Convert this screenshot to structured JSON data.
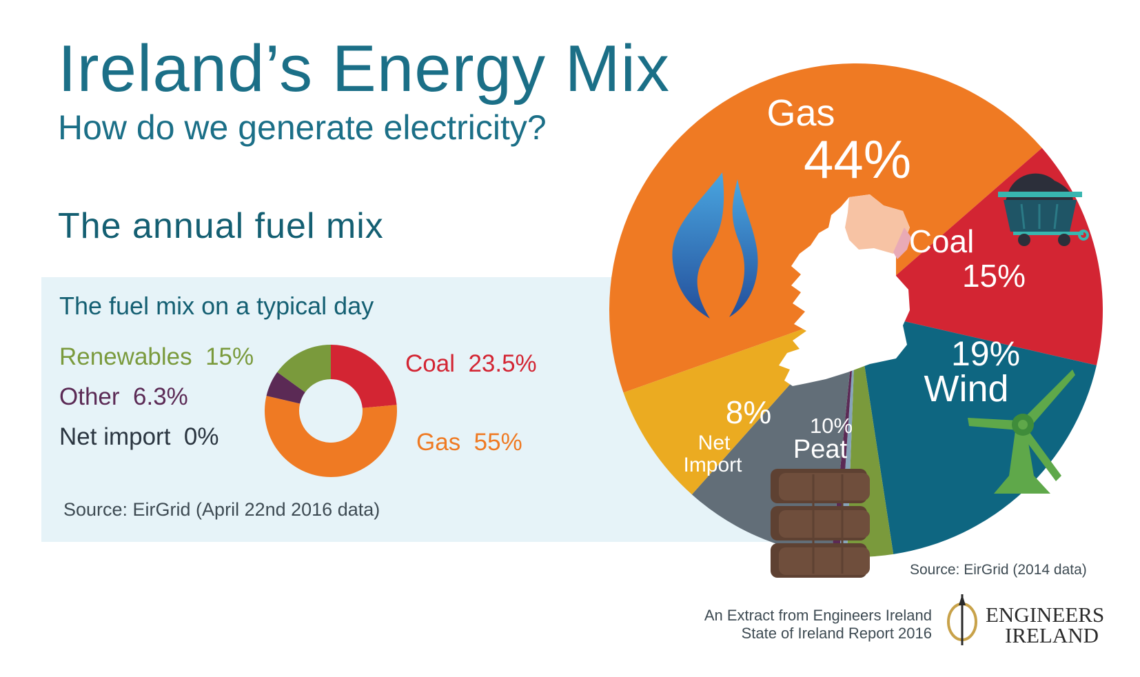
{
  "header": {
    "title": "Ireland’s  Energy  Mix",
    "subtitle": "How do we generate electricity?",
    "section_title": "The annual fuel mix"
  },
  "daily_panel": {
    "title": "The fuel mix on a typical day",
    "source": "Source: EirGrid (April 22nd 2016 data)"
  },
  "annual_source": "Source: EirGrid (2014 data)",
  "footer": {
    "extract_line1": "An Extract from Engineers Ireland",
    "extract_line2": "State of Ireland Report 2016",
    "logo_line1": "ENGINEERS",
    "logo_line2": "IRELAND"
  },
  "colors": {
    "gas": "#ef7a23",
    "coal": "#d32533",
    "wind": "#0e6681",
    "renewables": "#7a9a3c",
    "other": "#5b2a55",
    "peat": "#626e78",
    "net_import": "#ebab21",
    "other_light": "#87a4ba",
    "title": "#1b6f87",
    "panel_bg": "#e6f3f8"
  },
  "icons": [
    "gas-flame-icon",
    "coal-cart-icon",
    "wind-turbine-icon",
    "peat-bricks-icon",
    "ireland-map-icon",
    "engineers-ireland-logo-icon"
  ],
  "chart_data": [
    {
      "type": "pie",
      "name": "annual",
      "segments": [
        {
          "key": "gas",
          "label": "Gas",
          "value_label": "44%",
          "value": 44
        },
        {
          "key": "coal",
          "label": "Coal",
          "value_label": "15%",
          "value": 15
        },
        {
          "key": "wind",
          "label": "Wind",
          "value_label": "19%",
          "value": 19
        },
        {
          "key": "renewables",
          "label": "",
          "value_label": "",
          "value": 3
        },
        {
          "key": "other_light",
          "label": "",
          "value_label": "",
          "value": 0.5
        },
        {
          "key": "other",
          "label": "",
          "value_label": "",
          "value": 0.5
        },
        {
          "key": "peat",
          "label": "Peat",
          "value_label": "10%",
          "value": 10
        },
        {
          "key": "net_import",
          "label": "Net Import",
          "value_label": "8%",
          "value": 8
        }
      ]
    },
    {
      "type": "pie",
      "name": "typical_day",
      "segments": [
        {
          "key": "coal",
          "label": "Coal",
          "value_label": "23.5%",
          "value": 23.5
        },
        {
          "key": "gas",
          "label": "Gas",
          "value_label": "55%",
          "value": 55
        },
        {
          "key": "other",
          "label": "Other",
          "value_label": "6.3%",
          "value": 6.3
        },
        {
          "key": "renewables",
          "label": "Renewables",
          "value_label": "15%",
          "value": 15
        },
        {
          "key": "net_import",
          "label": "Net import",
          "value_label": "0%",
          "value": 0
        }
      ]
    }
  ]
}
